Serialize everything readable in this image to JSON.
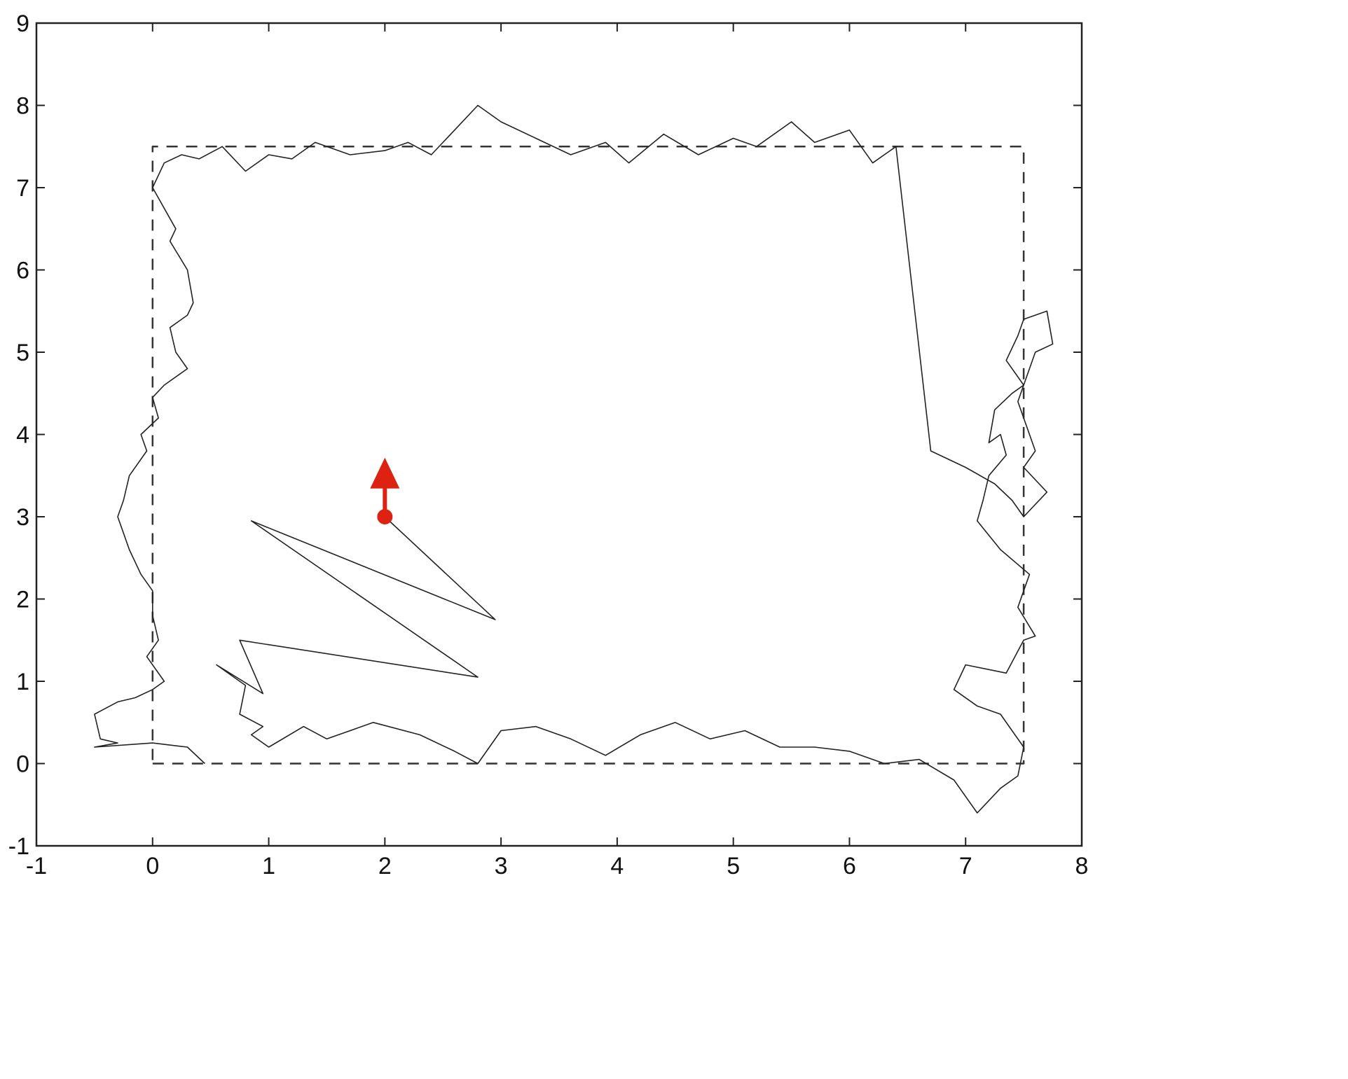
{
  "chart_data": {
    "type": "line",
    "title": "",
    "xlabel": "",
    "ylabel": "",
    "xlim": [
      -1,
      8
    ],
    "ylim": [
      -1,
      9
    ],
    "x_ticks": [
      -1,
      0,
      1,
      2,
      3,
      4,
      5,
      6,
      7,
      8
    ],
    "y_ticks": [
      -1,
      0,
      1,
      2,
      3,
      4,
      5,
      6,
      7,
      8,
      9
    ],
    "x_tick_labels": [
      "-1",
      "0",
      "1",
      "2",
      "3",
      "4",
      "5",
      "6",
      "7",
      "8"
    ],
    "y_tick_labels": [
      "-1",
      "0",
      "1",
      "2",
      "3",
      "4",
      "5",
      "6",
      "7",
      "8",
      "9"
    ],
    "grid": false,
    "legend": "none",
    "series": [
      {
        "style": "dashed",
        "color": "#333333",
        "x": [
          0,
          7.5,
          7.5,
          0,
          0
        ],
        "y": [
          0,
          0,
          7.5,
          7.5,
          0
        ]
      },
      {
        "style": "solid",
        "color": "#222222",
        "x": [
          2.0,
          2.95,
          0.85,
          2.8,
          0.75,
          0.95,
          0.55,
          0.8,
          0.75,
          0.95,
          0.85,
          1.0,
          1.3,
          1.5,
          1.9,
          2.3,
          2.6,
          2.8,
          3.0,
          3.3,
          3.6,
          3.9,
          4.2,
          4.5,
          4.8,
          5.1,
          5.4,
          5.7,
          6.0,
          6.3,
          6.6,
          6.9,
          7.1,
          7.3,
          7.45,
          7.5,
          7.4,
          7.3,
          7.1,
          6.9,
          7.0,
          7.35,
          7.5,
          7.6,
          7.45,
          7.55,
          7.3,
          7.1,
          7.15,
          7.2,
          7.35,
          7.3,
          7.2,
          7.25,
          7.4,
          7.5,
          7.35,
          7.45,
          7.5,
          7.7,
          7.75,
          7.6,
          7.5,
          7.45,
          7.5,
          7.6,
          7.5,
          7.7,
          7.5,
          7.4,
          7.25,
          7.0,
          6.7,
          6.4,
          6.2,
          6.0,
          5.7,
          5.5,
          5.2,
          5.0,
          4.7,
          4.4,
          4.1,
          3.9,
          3.6,
          3.3,
          3.0,
          2.8,
          2.6,
          2.4,
          2.2,
          2.0,
          1.7,
          1.4,
          1.2,
          1.0,
          0.8,
          0.6,
          0.4,
          0.25,
          0.1,
          0.0,
          0.2,
          0.15,
          0.3,
          0.35,
          0.3,
          0.15,
          0.2,
          0.3,
          0.1,
          0.0,
          0.05,
          -0.1,
          -0.05,
          -0.2,
          -0.25,
          -0.3,
          -0.2,
          -0.1,
          0.0,
          0.0,
          0.05,
          -0.05,
          0.1,
          0.0,
          -0.15,
          -0.3,
          -0.5,
          -0.45,
          -0.3,
          -0.5,
          0.0,
          0.3,
          0.45
        ],
        "y": [
          3.0,
          1.75,
          2.95,
          1.05,
          1.5,
          0.85,
          1.2,
          0.95,
          0.6,
          0.45,
          0.35,
          0.2,
          0.45,
          0.3,
          0.5,
          0.35,
          0.15,
          0.0,
          0.4,
          0.45,
          0.3,
          0.1,
          0.35,
          0.5,
          0.3,
          0.4,
          0.2,
          0.2,
          0.15,
          0.0,
          0.05,
          -0.2,
          -0.6,
          -0.3,
          -0.15,
          0.2,
          0.4,
          0.6,
          0.7,
          0.9,
          1.2,
          1.1,
          1.5,
          1.55,
          1.9,
          2.3,
          2.6,
          2.95,
          3.2,
          3.5,
          3.75,
          4.0,
          3.9,
          4.3,
          4.5,
          4.6,
          4.9,
          5.2,
          5.4,
          5.5,
          5.1,
          5.0,
          4.6,
          4.4,
          4.2,
          3.8,
          3.6,
          3.3,
          3.0,
          3.2,
          3.4,
          3.6,
          3.8,
          7.5,
          7.3,
          7.7,
          7.55,
          7.8,
          7.5,
          7.6,
          7.4,
          7.65,
          7.3,
          7.55,
          7.4,
          7.6,
          7.8,
          8.0,
          7.7,
          7.4,
          7.55,
          7.45,
          7.4,
          7.55,
          7.35,
          7.4,
          7.2,
          7.5,
          7.35,
          7.4,
          7.3,
          7.0,
          6.5,
          6.35,
          6.0,
          5.6,
          5.45,
          5.3,
          5.0,
          4.8,
          4.6,
          4.45,
          4.2,
          4.0,
          3.8,
          3.5,
          3.2,
          3.0,
          2.6,
          2.3,
          2.1,
          1.8,
          1.5,
          1.3,
          1.0,
          0.9,
          0.8,
          0.75,
          0.6,
          0.3,
          0.25,
          0.2,
          0.25,
          0.2,
          0.0
        ]
      }
    ],
    "annotations": [
      {
        "type": "point",
        "x": 2.0,
        "y": 3.0,
        "color": "#dd2211"
      },
      {
        "type": "arrow",
        "x": 2.0,
        "y": 3.0,
        "dx": 0.0,
        "dy": 0.65,
        "color": "#dd2211"
      }
    ]
  }
}
